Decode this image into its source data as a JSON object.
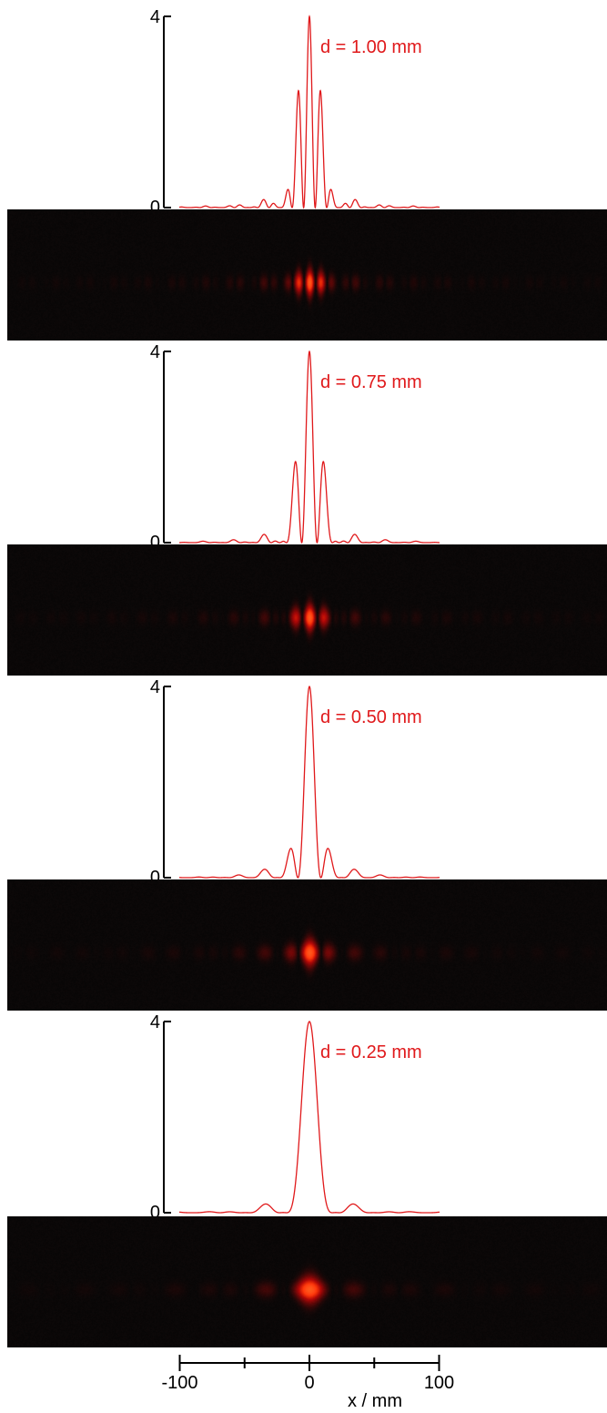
{
  "chart_data": [
    {
      "type": "line",
      "annotation": "d = 1.00 mm",
      "y_ticks": [
        "0",
        "4"
      ],
      "ylim": [
        0,
        4
      ],
      "xlim": [
        -100,
        100
      ],
      "slit_separation_mm": 1.0,
      "curve": "two-slit interference intensity I(x) = 4·cos²(πdx/λL)·sinc²(πax/λL)",
      "fringe_period_mm": 8.9,
      "envelope_first_zero_mm": 23,
      "series_color": "#e0191b"
    },
    {
      "type": "line",
      "annotation": "d = 0.75 mm",
      "y_ticks": [
        "0",
        "4"
      ],
      "ylim": [
        0,
        4
      ],
      "xlim": [
        -100,
        100
      ],
      "slit_separation_mm": 0.75,
      "curve": "two-slit interference intensity I(x) = 4·cos²(πdx/λL)·sinc²(πax/λL)",
      "fringe_period_mm": 11.8,
      "envelope_first_zero_mm": 23,
      "series_color": "#e0191b"
    },
    {
      "type": "line",
      "annotation": "d = 0.50 mm",
      "y_ticks": [
        "0",
        "4"
      ],
      "ylim": [
        0,
        4
      ],
      "xlim": [
        -100,
        100
      ],
      "slit_separation_mm": 0.5,
      "curve": "two-slit interference intensity I(x) = 4·cos²(πdx/λL)·sinc²(πax/λL)",
      "fringe_period_mm": 17.7,
      "envelope_first_zero_mm": 23,
      "series_color": "#e0191b"
    },
    {
      "type": "line",
      "annotation": "d = 0.25 mm",
      "y_ticks": [
        "0",
        "4"
      ],
      "ylim": [
        0,
        4
      ],
      "xlim": [
        -100,
        100
      ],
      "slit_separation_mm": 0.25,
      "curve": "two-slit interference intensity I(x) = 4·cos²(πdx/λL)·sinc²(πax/λL)",
      "fringe_period_mm": 35.4,
      "envelope_first_zero_mm": 23,
      "series_color": "#e0191b"
    }
  ],
  "x_axis": {
    "label": "x / mm",
    "tick_labels": [
      "-100",
      "0",
      "100"
    ],
    "range": [
      -100,
      100
    ],
    "minor_ticks": [
      -50,
      50
    ]
  }
}
